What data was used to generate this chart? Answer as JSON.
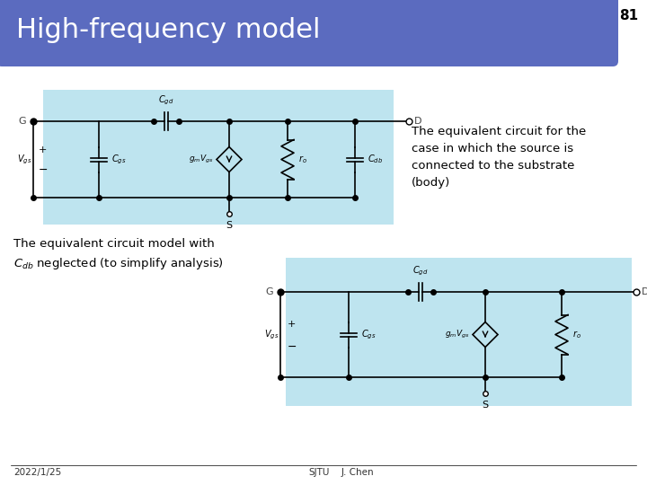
{
  "title": "High-frequency model",
  "slide_num": "81",
  "title_bg_color": "#5B6BBF",
  "title_text_color": "#FFFFFF",
  "slide_bg_color": "#FFFFFF",
  "slide_border_color": "#5B6BBF",
  "circuit_bg_color": "#BEE4EF",
  "text1": "The equivalent circuit for the\ncase in which the source is\nconnected to the substrate\n(body)",
  "text2": "The equivalent circuit model with\n$C_{db}$ neglected (to simplify analysis)",
  "footer_left": "2022/1/25",
  "footer_mid": "SJTU",
  "footer_right": "J. Chen"
}
